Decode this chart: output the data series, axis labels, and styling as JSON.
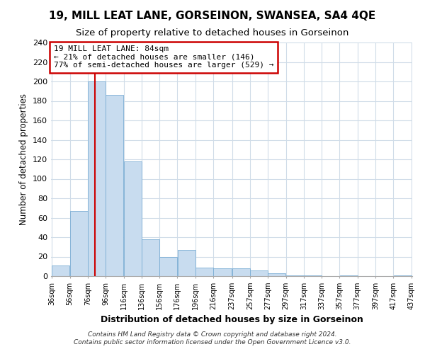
{
  "title": "19, MILL LEAT LANE, GORSEINON, SWANSEA, SA4 4QE",
  "subtitle": "Size of property relative to detached houses in Gorseinon",
  "xlabel": "Distribution of detached houses by size in Gorseinon",
  "ylabel": "Number of detached properties",
  "bar_edges": [
    36,
    56,
    76,
    96,
    116,
    136,
    156,
    176,
    196,
    216,
    237,
    257,
    277,
    297,
    317,
    337,
    357,
    377,
    397,
    417,
    437
  ],
  "bar_heights": [
    11,
    67,
    200,
    186,
    118,
    38,
    20,
    27,
    9,
    8,
    8,
    6,
    3,
    1,
    1,
    0,
    1,
    0,
    0,
    1
  ],
  "bar_color": "#c8dcef",
  "bar_edgecolor": "#7aadd4",
  "property_line_x": 84,
  "property_line_color": "#cc0000",
  "ylim": [
    0,
    240
  ],
  "yticks": [
    0,
    20,
    40,
    60,
    80,
    100,
    120,
    140,
    160,
    180,
    200,
    220,
    240
  ],
  "annotation_text": "19 MILL LEAT LANE: 84sqm\n← 21% of detached houses are smaller (146)\n77% of semi-detached houses are larger (529) →",
  "annotation_box_color": "#ffffff",
  "annotation_box_edgecolor": "#cc0000",
  "footer_line1": "Contains HM Land Registry data © Crown copyright and database right 2024.",
  "footer_line2": "Contains public sector information licensed under the Open Government Licence v3.0.",
  "background_color": "#ffffff",
  "plot_background_color": "#ffffff",
  "grid_color": "#d0dce8",
  "title_fontsize": 11,
  "subtitle_fontsize": 9.5
}
